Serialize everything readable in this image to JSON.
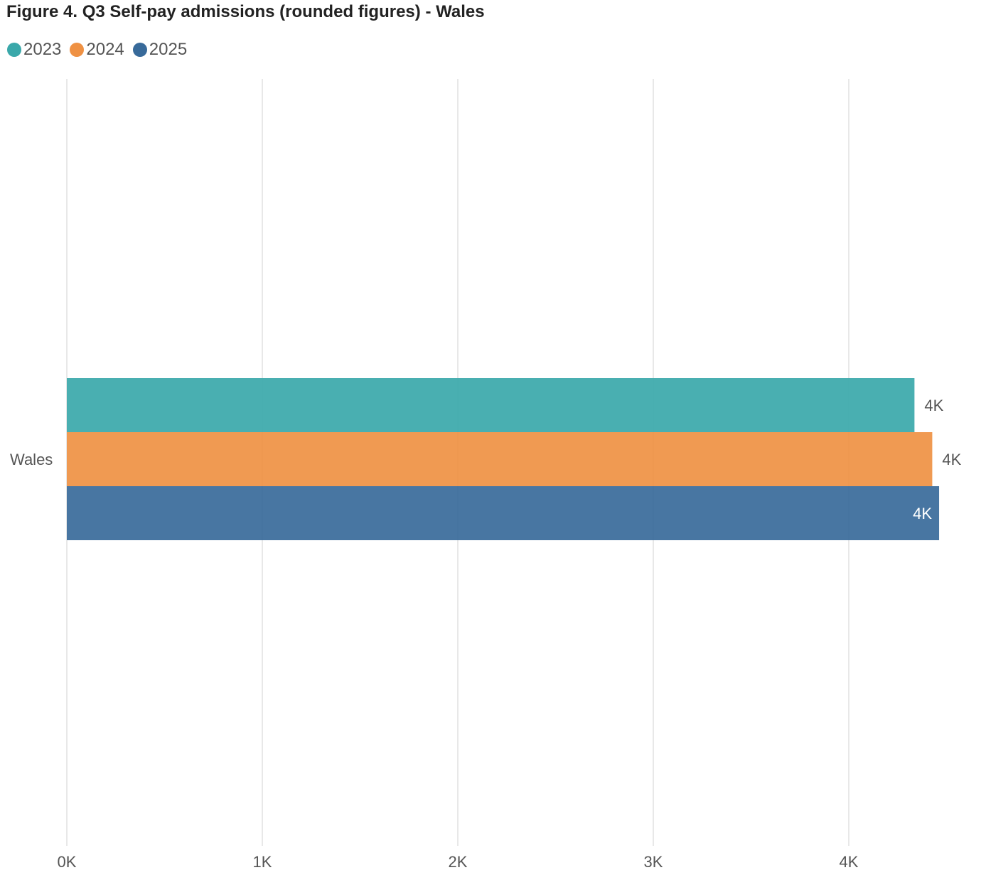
{
  "chart_data": {
    "type": "bar",
    "orientation": "horizontal",
    "title": "Figure 4. Q3 Self-pay admissions (rounded figures) - Wales",
    "xlabel": "",
    "ylabel": "",
    "categories": [
      "Wales"
    ],
    "series": [
      {
        "name": "2023",
        "values": [
          4336
        ],
        "color": "#3aa8aa",
        "label": "4K"
      },
      {
        "name": "2024",
        "values": [
          4427
        ],
        "color": "#ef9143",
        "label": "4K"
      },
      {
        "name": "2025",
        "values": [
          4462
        ],
        "color": "#386a9a",
        "label": "4K"
      }
    ],
    "xlim": [
      0,
      4500
    ],
    "xticks": [
      {
        "value": 0,
        "label": "0K"
      },
      {
        "value": 1000,
        "label": "1K"
      },
      {
        "value": 2000,
        "label": "2K"
      },
      {
        "value": 3000,
        "label": "3K"
      },
      {
        "value": 4000,
        "label": "4K"
      }
    ],
    "grid": true,
    "legend_position": "top-left"
  }
}
